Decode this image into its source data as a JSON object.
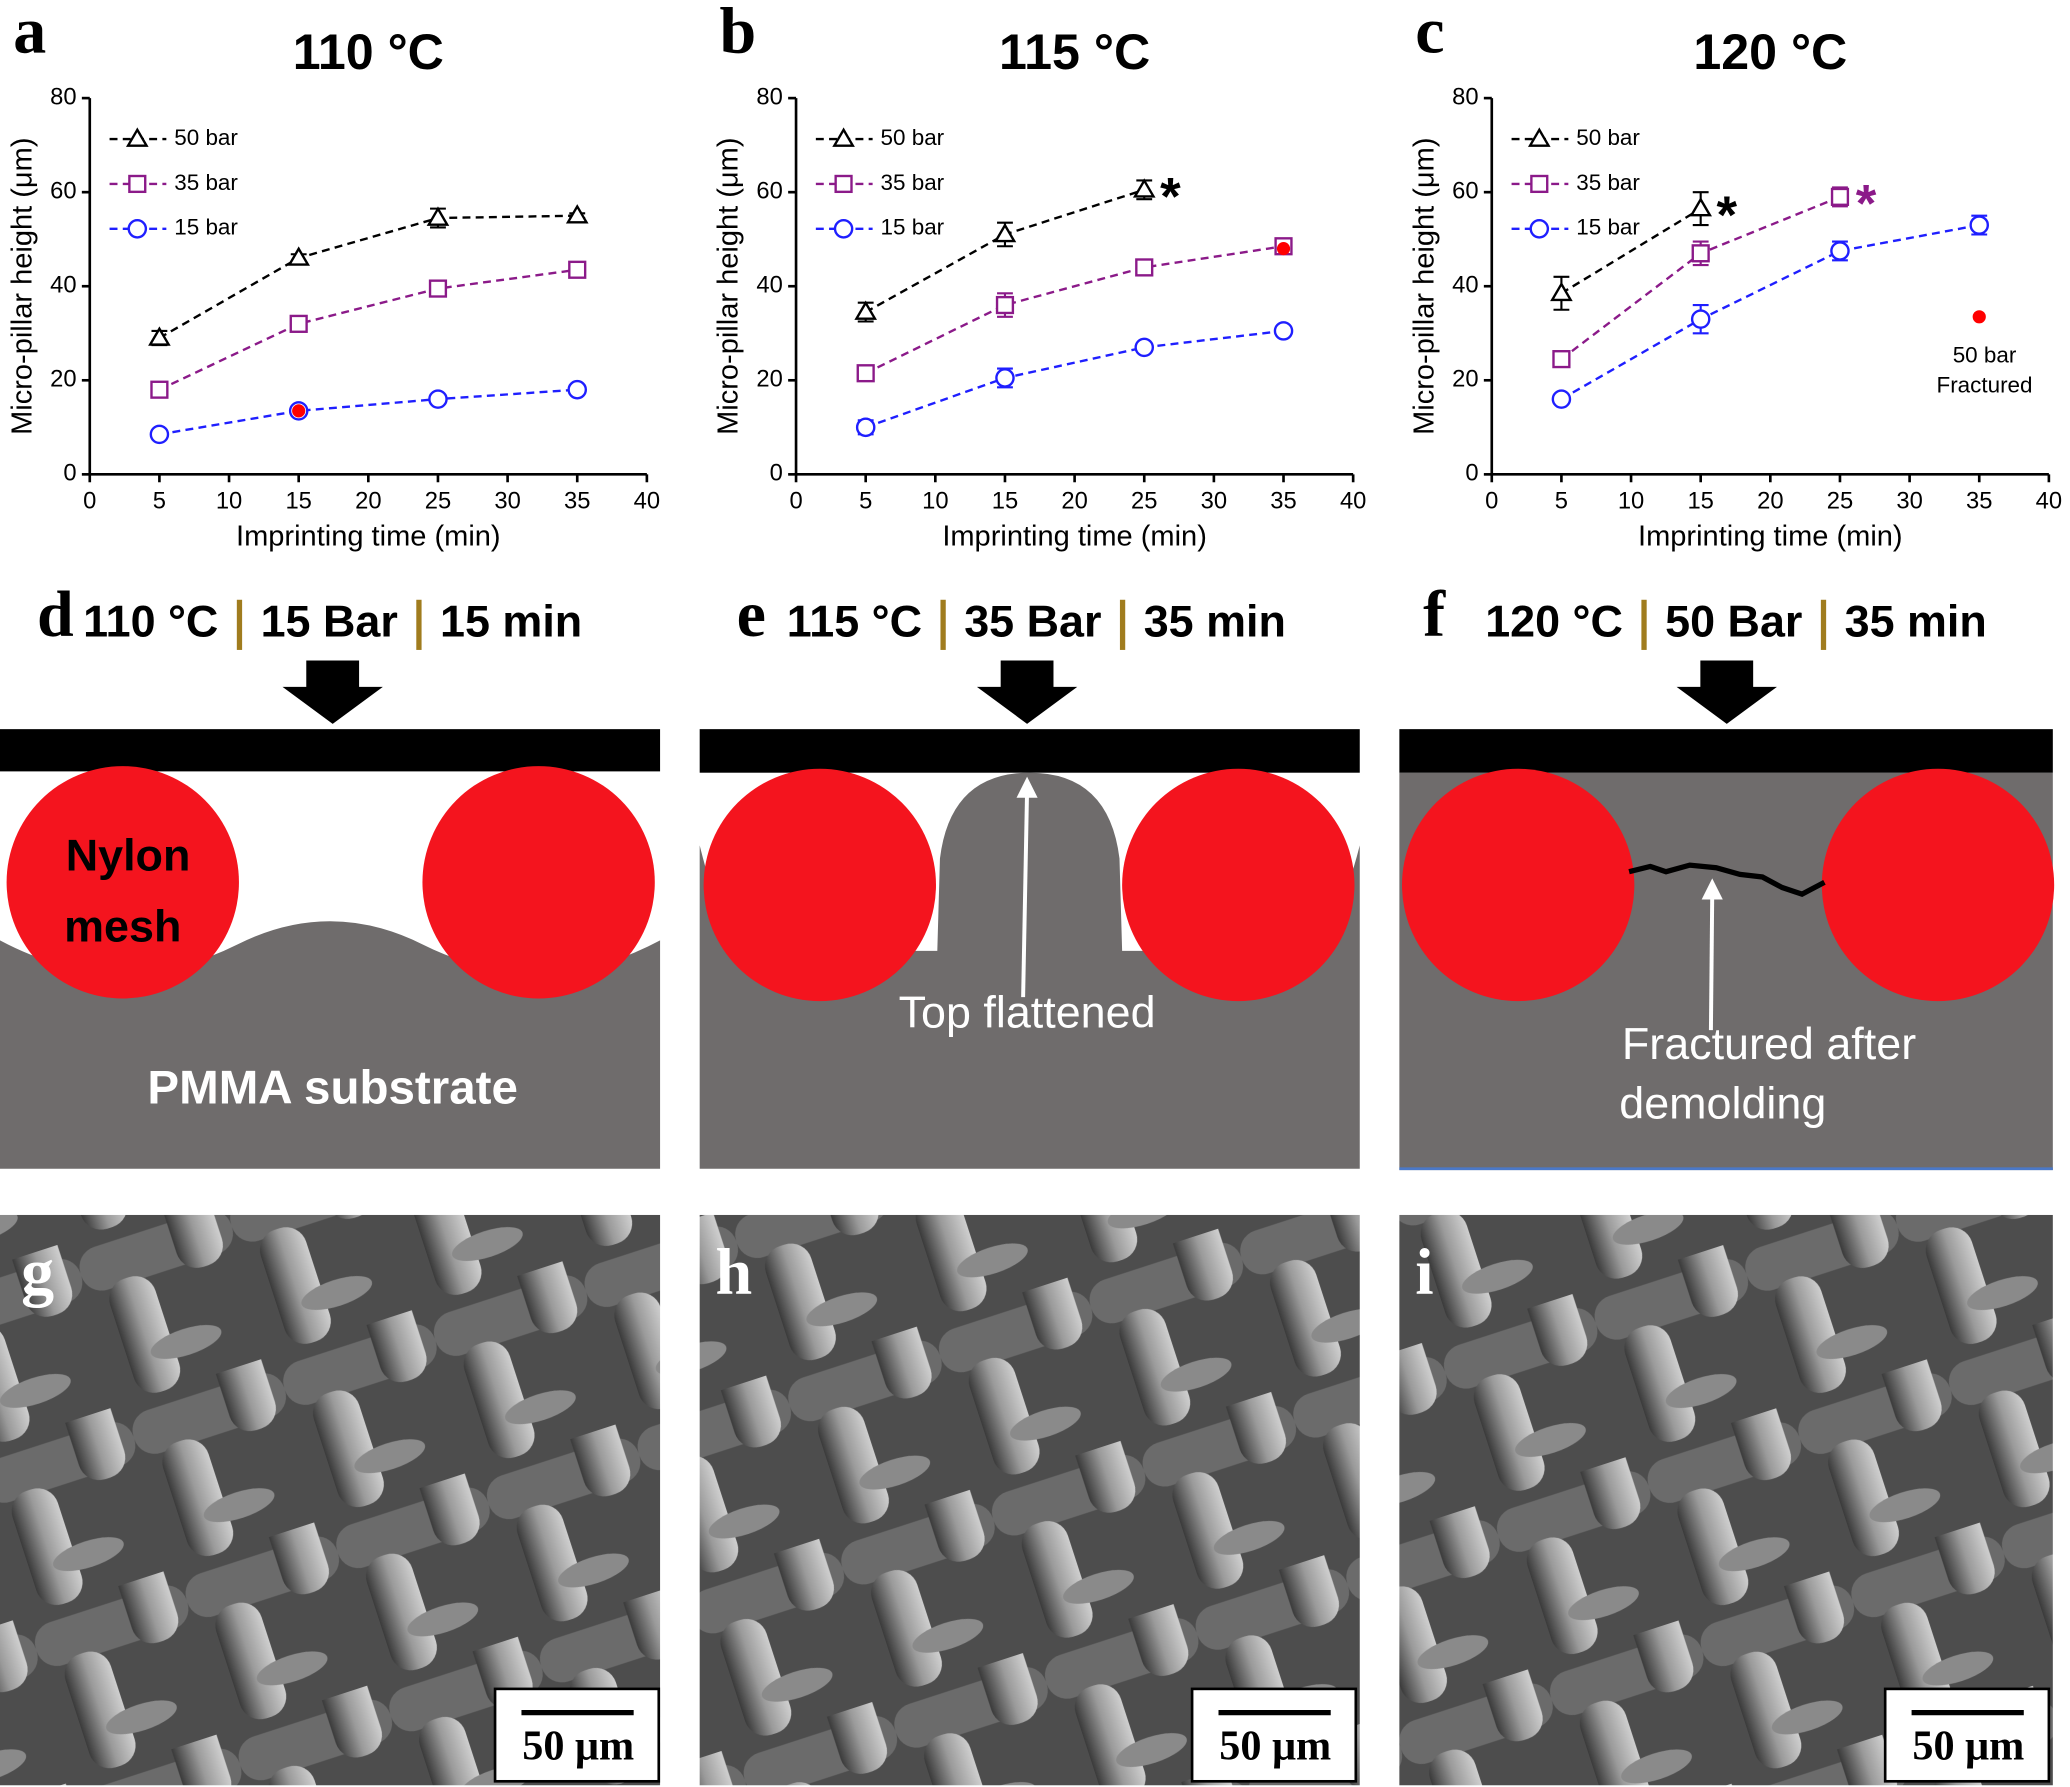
{
  "chart_data": [
    {
      "type": "line",
      "panel_label": "a",
      "title": "110 °C",
      "x_label": "Imprinting time (min)",
      "y_label": "Micro-pillar height (μm)",
      "x": [
        5,
        15,
        25,
        35
      ],
      "xlim": [
        0,
        40
      ],
      "xticks": [
        0,
        5,
        10,
        15,
        20,
        25,
        30,
        35,
        40
      ],
      "ylim": [
        0,
        80
      ],
      "yticks": [
        0,
        20,
        40,
        60,
        80
      ],
      "legend": "top-left",
      "series": [
        {
          "name": "50 bar",
          "color": "#000000",
          "marker": "triangle",
          "values": [
            29,
            46,
            54.5,
            55
          ],
          "errors": [
            1.5,
            0.8,
            2,
            0.5
          ]
        },
        {
          "name": "35 bar",
          "color": "#8b1a89",
          "marker": "square",
          "values": [
            18,
            32,
            39.5,
            43.5
          ],
          "errors": [
            1,
            1,
            1,
            1.5
          ]
        },
        {
          "name": "15 bar",
          "color": "#1f1fff",
          "marker": "circle",
          "values": [
            8.5,
            13.5,
            16,
            18
          ],
          "errors": [
            0.5,
            0.5,
            0.5,
            0.5
          ]
        }
      ],
      "highlight": {
        "x": 15,
        "y": 13.5,
        "color": "#ff0000"
      }
    },
    {
      "type": "line",
      "panel_label": "b",
      "title": "115 °C",
      "x_label": "Imprinting time (min)",
      "y_label": "Micro-pillar height (μm)",
      "x": [
        5,
        15,
        25,
        35
      ],
      "xlim": [
        0,
        40
      ],
      "xticks": [
        0,
        5,
        10,
        15,
        20,
        25,
        30,
        35,
        40
      ],
      "ylim": [
        0,
        80
      ],
      "yticks": [
        0,
        20,
        40,
        60,
        80
      ],
      "legend": "top-left",
      "series": [
        {
          "name": "50 bar",
          "color": "#000000",
          "marker": "triangle",
          "values": [
            34.5,
            51,
            60.5,
            null
          ],
          "errors": [
            2,
            2.5,
            2,
            null
          ],
          "note": "*"
        },
        {
          "name": "35 bar",
          "color": "#8b1a89",
          "marker": "square",
          "values": [
            21.5,
            36,
            44,
            48.5
          ],
          "errors": [
            1,
            2.5,
            1,
            1
          ]
        },
        {
          "name": "15 bar",
          "color": "#1f1fff",
          "marker": "circle",
          "values": [
            10,
            20.5,
            27,
            30.5
          ],
          "errors": [
            1.5,
            2,
            0.5,
            0.5
          ]
        }
      ],
      "highlight": {
        "x": 35,
        "y": 48,
        "color": "#ff0000"
      }
    },
    {
      "type": "line",
      "panel_label": "c",
      "title": "120 °C",
      "x_label": "Imprinting time (min)",
      "y_label": "Micro-pillar height (μm)",
      "x": [
        5,
        15,
        25,
        35
      ],
      "xlim": [
        0,
        40
      ],
      "xticks": [
        0,
        5,
        10,
        15,
        20,
        25,
        30,
        35,
        40
      ],
      "ylim": [
        0,
        80
      ],
      "yticks": [
        0,
        20,
        40,
        60,
        80
      ],
      "legend": "top-left",
      "series": [
        {
          "name": "50 bar",
          "color": "#000000",
          "marker": "triangle",
          "values": [
            38.5,
            56.5,
            null,
            null
          ],
          "errors": [
            3.5,
            3.5,
            null,
            null
          ],
          "note": "*"
        },
        {
          "name": "35 bar",
          "color": "#8b1a89",
          "marker": "square",
          "values": [
            24.5,
            47,
            59,
            null
          ],
          "errors": [
            1,
            2.5,
            2,
            null
          ],
          "note": "*"
        },
        {
          "name": "15 bar",
          "color": "#1f1fff",
          "marker": "circle",
          "values": [
            16,
            33,
            47.5,
            53
          ],
          "errors": [
            0.5,
            3,
            2,
            2
          ]
        }
      ],
      "highlight": {
        "x": 35,
        "y": 33.5,
        "color": "#ff0000",
        "label": [
          "50 bar",
          "Fractured"
        ]
      }
    }
  ],
  "diagrams": [
    {
      "label": "d",
      "temperature": "110 °C",
      "pressure": "15 Bar",
      "time": "15 min",
      "texts": [
        "Nylon",
        "mesh",
        "PMMA substrate"
      ]
    },
    {
      "label": "e",
      "temperature": "115 °C",
      "pressure": "35 Bar",
      "time": "35 min",
      "texts": [
        "Top flattened"
      ]
    },
    {
      "label": "f",
      "temperature": "120 °C",
      "pressure": "50 Bar",
      "time": "35 min",
      "texts": [
        "Fractured after",
        "demolding"
      ]
    }
  ],
  "micrographs": [
    {
      "label": "g",
      "scale_bar": "50 μm"
    },
    {
      "label": "h",
      "scale_bar": "50 μm"
    },
    {
      "label": "i",
      "scale_bar": "50 μm"
    }
  ]
}
